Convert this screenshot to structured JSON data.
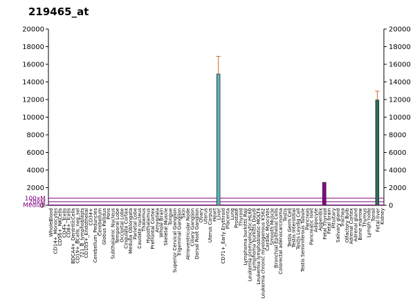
{
  "chart_data": {
    "type": "bar",
    "title": "219465_at",
    "xlabel": "",
    "ylabel": "",
    "ylim": [
      0,
      20000
    ],
    "y_ticks": [
      0,
      2000,
      4000,
      6000,
      8000,
      10000,
      12000,
      14000,
      16000,
      18000,
      20000
    ],
    "y_tick_labels_right": true,
    "grid": false,
    "reference_lines": [
      {
        "label": "100xM",
        "value": 800,
        "color": "#800080"
      },
      {
        "label": "20xM",
        "value": 400,
        "color": "#800080"
      },
      {
        "label": "Median",
        "value": 40,
        "color": "#800080"
      }
    ],
    "categories": [
      "WholeBlood",
      "CD14+_Monocytes",
      "CD56+_NKCells",
      "CD4+_Tcells",
      "CD8+_Tcells",
      "BDCA4+_DentriticCells",
      "CD19+_BCells_neg_sel",
      "721_B_lymphoblasts",
      "CD105+_Endothelial",
      "CD34+",
      "Cerebellum_Peduncles",
      "Cerebellum",
      "Globus Pallidus",
      "Pons",
      "Subthalamic Nucleus",
      "Temporal Lobe",
      "Occipital Lobe",
      "Cingulate Cortex",
      "Medulla Oblongata",
      "Parietal Lobe",
      "Caudate nucleus",
      "Thalamus",
      "Hypothalamus",
      "Prefrontal Cortex",
      "Amygdala",
      "Whole Brain",
      "Skeletal Muscle",
      "Tongue",
      "Superior Cervical Ganglion",
      "Trigeminal Ganglion",
      "Skin",
      "Atrioventricular Node",
      "Ciliary Ganglion",
      "Dorsal Root Ganglion",
      "Ovary",
      "Uterus",
      "Uterus Corpus",
      "Heart",
      "Liver",
      "CD71+_Early Erythroid",
      "Placenta",
      "Lung",
      "Prostate",
      "Thyroid",
      "Lymphoma burkitts Raji",
      "Leukemia promyelocytic-HL60",
      "Lymphoma burkitts Daudi",
      "Leukemia lymphoblastic-MOLT4",
      "Leukemia chronic myelogenous K562",
      "Cardiac Myocytes",
      "Smooth Muscle",
      "Bronchial Epithelial Cells",
      "Colorectal adenocarcinoma",
      "Testis",
      "Testis Germ Cell",
      "Testis Interstitial",
      "Testis Leydig Cell",
      "Testis Seminiferous Tubule",
      "Pancreas",
      "Pancreatic Islet",
      "Adipocyte",
      "Appendix",
      "Fetal Thyroid",
      "Fetal brain",
      "Pituitary",
      "Salivary gland",
      "Trachea",
      "Olfactory Bulb",
      "Adrenal Cortex",
      "Adrenal gland",
      "Bone marrow",
      "Thymus",
      "Lymph node",
      "Tonsil",
      "Fetal liver",
      "Kidney"
    ],
    "x_tick_labels": [
      "WholeBlood",
      "CD14+_Monocytes",
      "CD56+_NKCells",
      "CD4+_Tcells",
      "CD8+_Tcells",
      "BDCA4+_DentriticCells",
      "CD19+_BCells_neg_sel",
      "721_B_lymphoblasts",
      "CD105+_Endothelial",
      "CD34+",
      "Cerebellum_Peduncles",
      "Cerebellum",
      "Globus Pallidus",
      "Pons",
      "Subthalamic Nucleus",
      "Temporal Lobe",
      "Occipital Lobe",
      "Cingulate Cortex",
      "Medulla Oblongata",
      "Parietal Lobe",
      "Caudate nucleus",
      "Thalamus",
      "Hypothalamus",
      "Prefrontal Cortex",
      "Amygdala",
      "Whole Brain",
      "Skeletal Muscle",
      "Tongue",
      "Superior Cervical Ganglion",
      "Trigeminal Ganglion",
      "Skin",
      "Atrioventricular Node",
      "Ciliary Ganglion",
      "Dorsal Root Ganglion",
      "Ovary",
      "Uterus",
      "Uterus Corpus",
      "Heart",
      "Liver",
      "CD71+_Early Erythroid",
      "Placenta",
      "Lung",
      "Prostate",
      "Thyroid",
      "Lymphoma burkitts Raji",
      "Leukemia promyelocytic-HL60",
      "Lymphoma burkitts Daudi",
      "Leukemia lymphoblastic-MOLT4",
      "Leukemia chronic myelogenous K562",
      "Cardiac Myocytes",
      "Smooth Muscle",
      "Bronchial Epithelial Cells",
      "Colorectal adenocarcinoma",
      "Testis",
      "Testis Germ Cell",
      "Testis Interstitial",
      "Testis Leydig Cell",
      "Testis Seminiferous Tubule",
      "Pancreas",
      "Pancreatic Islet",
      "Adipocyte",
      "Appendix",
      "Fetal Thyroid",
      "Fetal brain",
      "Pituitary",
      "Salivary gland",
      "Trachea",
      "Olfactory Bulb",
      "Adrenal Cortex",
      "Adrenal gland",
      "Bone marrow",
      "Thymus",
      "Lymph node",
      "Tonsil",
      "Fetal liver",
      "Kidney"
    ],
    "series": [
      {
        "values": [
          0,
          0,
          0,
          0,
          0,
          0,
          0,
          0,
          0,
          0,
          0,
          0,
          0,
          0,
          0,
          0,
          0,
          0,
          0,
          0,
          0,
          0,
          0,
          0,
          0,
          0,
          0,
          0,
          0,
          0,
          0,
          0,
          0,
          0,
          0,
          0,
          0,
          0,
          14900,
          0,
          0,
          0,
          0,
          0,
          0,
          0,
          0,
          0,
          0,
          0,
          0,
          0,
          0,
          0,
          0,
          0,
          0,
          0,
          0,
          0,
          0,
          0,
          2600,
          0,
          0,
          0,
          0,
          0,
          0,
          0,
          0,
          0,
          0,
          0,
          11950,
          0
        ],
        "errors": [
          0,
          0,
          0,
          0,
          0,
          0,
          0,
          0,
          0,
          0,
          0,
          0,
          0,
          0,
          0,
          0,
          0,
          0,
          0,
          0,
          0,
          0,
          0,
          0,
          0,
          0,
          0,
          0,
          0,
          0,
          0,
          0,
          0,
          0,
          0,
          0,
          0,
          0,
          2000,
          0,
          0,
          0,
          0,
          0,
          0,
          0,
          0,
          0,
          0,
          0,
          0,
          0,
          0,
          0,
          0,
          0,
          0,
          0,
          0,
          0,
          0,
          0,
          0,
          0,
          0,
          0,
          0,
          0,
          0,
          0,
          0,
          0,
          0,
          0,
          1000,
          0
        ],
        "colors": {
          "38": "#5fb3b3",
          "62": "#8b008b",
          "74": "#2f6f5f"
        }
      }
    ]
  },
  "colors": {
    "axis": "#000000",
    "error_bar": "#c46a2a",
    "reference_line": "#800080",
    "bar_outline": "#000000"
  }
}
